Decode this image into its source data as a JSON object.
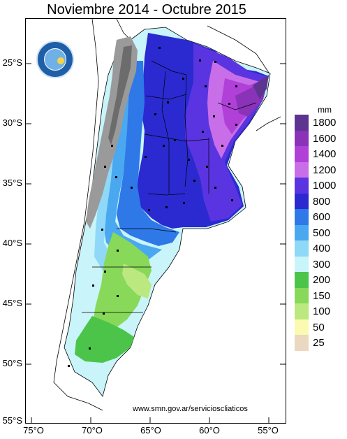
{
  "title": "Noviembre 2014 - Octubre 2015",
  "website": "www.smn.gov.ar/servicioscliaticos",
  "map": {
    "latitude_labels": [
      "25°S",
      "30°S",
      "35°S",
      "40°S",
      "45°S",
      "50°S",
      "55°S"
    ],
    "longitude_labels": [
      "75°O",
      "70°O",
      "65°O",
      "60°O",
      "55°O"
    ]
  },
  "legend": {
    "unit": "mm",
    "items": [
      {
        "label": "1800",
        "color": "#5e3491"
      },
      {
        "label": "1600",
        "color": "#8a32b8"
      },
      {
        "label": "1400",
        "color": "#b040d8"
      },
      {
        "label": "1200",
        "color": "#c86ee8"
      },
      {
        "label": "1000",
        "color": "#5a34e0"
      },
      {
        "label": "800",
        "color": "#2a2ad0"
      },
      {
        "label": "600",
        "color": "#2f78e8"
      },
      {
        "label": "500",
        "color": "#4aa8f0"
      },
      {
        "label": "400",
        "color": "#8fd8f8"
      },
      {
        "label": "300",
        "color": "#c8f4fa"
      },
      {
        "label": "200",
        "color": "#4cc44a"
      },
      {
        "label": "150",
        "color": "#88d85a"
      },
      {
        "label": "100",
        "color": "#bce880"
      },
      {
        "label": "50",
        "color": "#fafab0"
      },
      {
        "label": "25",
        "color": "#ead8c0"
      }
    ]
  },
  "logo": {
    "name": "smn-logo"
  }
}
